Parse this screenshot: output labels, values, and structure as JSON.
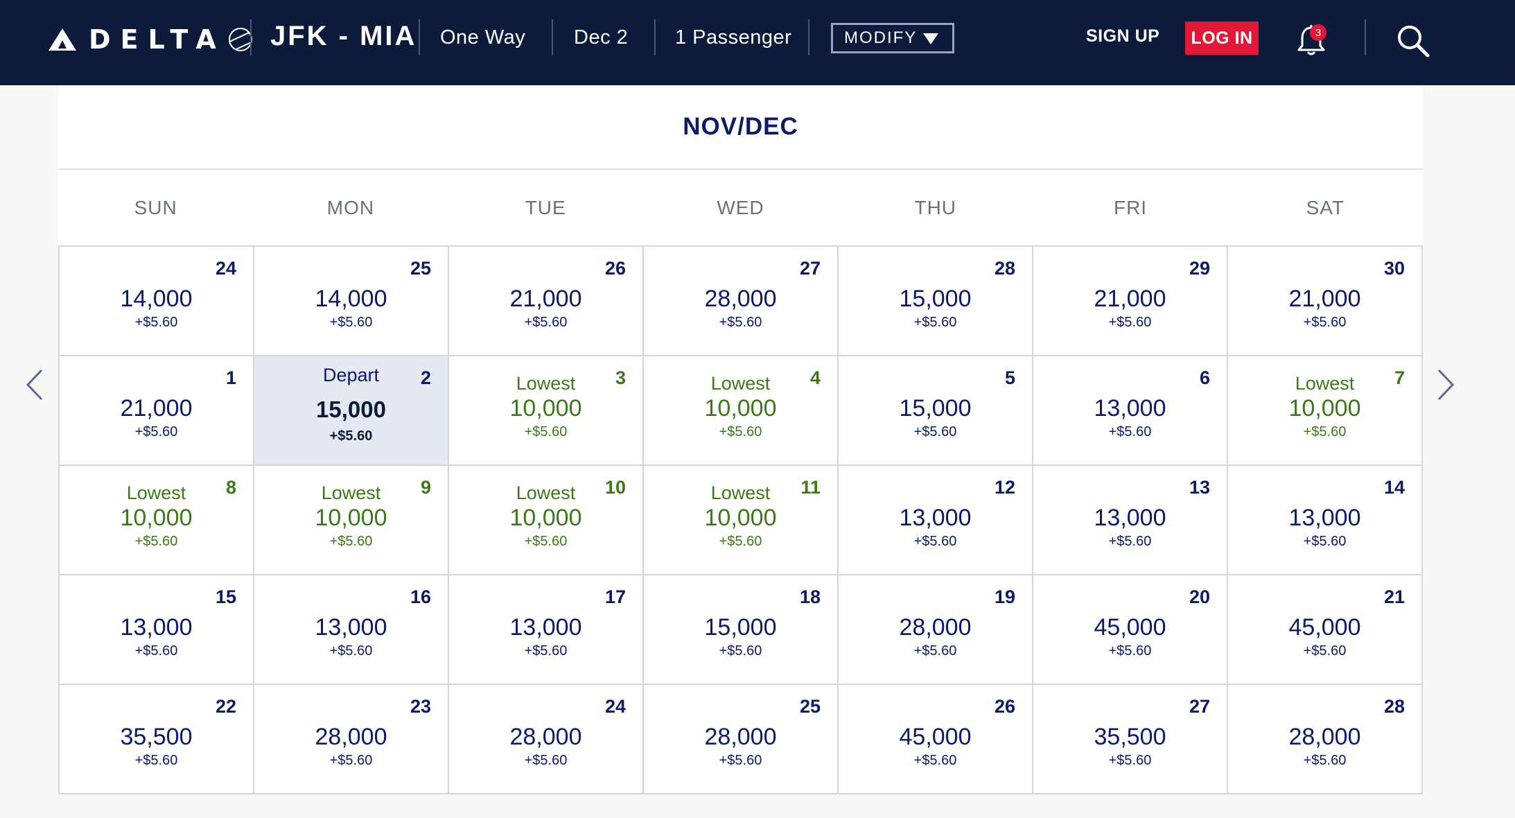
{
  "header": {
    "brand": "DELTA",
    "route": "JFK - MIA",
    "trip_type": "One Way",
    "date": "Dec 2",
    "passengers": "1 Passenger",
    "modify_label": "MODIFY",
    "signup_label": "SIGN UP",
    "login_label": "LOG IN",
    "notification_count": "3",
    "colors": {
      "nav_bg": "#0c1a3b",
      "login_bg": "#e31837"
    }
  },
  "calendar": {
    "title": "NOV/DEC",
    "weekdays": [
      "SUN",
      "MON",
      "TUE",
      "WED",
      "THU",
      "FRI",
      "SAT"
    ],
    "colors": {
      "text": "#0c1a6b",
      "lowest": "#3b7a16",
      "selected_bg": "#e4e9f2"
    },
    "cells": [
      {
        "day": "24",
        "miles": "14,000",
        "fee": "+$5.60",
        "label": ""
      },
      {
        "day": "25",
        "miles": "14,000",
        "fee": "+$5.60",
        "label": ""
      },
      {
        "day": "26",
        "miles": "21,000",
        "fee": "+$5.60",
        "label": ""
      },
      {
        "day": "27",
        "miles": "28,000",
        "fee": "+$5.60",
        "label": ""
      },
      {
        "day": "28",
        "miles": "15,000",
        "fee": "+$5.60",
        "label": ""
      },
      {
        "day": "29",
        "miles": "21,000",
        "fee": "+$5.60",
        "label": ""
      },
      {
        "day": "30",
        "miles": "21,000",
        "fee": "+$5.60",
        "label": ""
      },
      {
        "day": "1",
        "miles": "21,000",
        "fee": "+$5.60",
        "label": ""
      },
      {
        "day": "2",
        "miles": "15,000",
        "fee": "+$5.60",
        "label": "Depart",
        "selected": true
      },
      {
        "day": "3",
        "miles": "10,000",
        "fee": "+$5.60",
        "label": "Lowest",
        "lowest": true
      },
      {
        "day": "4",
        "miles": "10,000",
        "fee": "+$5.60",
        "label": "Lowest",
        "lowest": true
      },
      {
        "day": "5",
        "miles": "15,000",
        "fee": "+$5.60",
        "label": ""
      },
      {
        "day": "6",
        "miles": "13,000",
        "fee": "+$5.60",
        "label": ""
      },
      {
        "day": "7",
        "miles": "10,000",
        "fee": "+$5.60",
        "label": "Lowest",
        "lowest": true
      },
      {
        "day": "8",
        "miles": "10,000",
        "fee": "+$5.60",
        "label": "Lowest",
        "lowest": true
      },
      {
        "day": "9",
        "miles": "10,000",
        "fee": "+$5.60",
        "label": "Lowest",
        "lowest": true
      },
      {
        "day": "10",
        "miles": "10,000",
        "fee": "+$5.60",
        "label": "Lowest",
        "lowest": true
      },
      {
        "day": "11",
        "miles": "10,000",
        "fee": "+$5.60",
        "label": "Lowest",
        "lowest": true
      },
      {
        "day": "12",
        "miles": "13,000",
        "fee": "+$5.60",
        "label": ""
      },
      {
        "day": "13",
        "miles": "13,000",
        "fee": "+$5.60",
        "label": ""
      },
      {
        "day": "14",
        "miles": "13,000",
        "fee": "+$5.60",
        "label": ""
      },
      {
        "day": "15",
        "miles": "13,000",
        "fee": "+$5.60",
        "label": ""
      },
      {
        "day": "16",
        "miles": "13,000",
        "fee": "+$5.60",
        "label": ""
      },
      {
        "day": "17",
        "miles": "13,000",
        "fee": "+$5.60",
        "label": ""
      },
      {
        "day": "18",
        "miles": "15,000",
        "fee": "+$5.60",
        "label": ""
      },
      {
        "day": "19",
        "miles": "28,000",
        "fee": "+$5.60",
        "label": ""
      },
      {
        "day": "20",
        "miles": "45,000",
        "fee": "+$5.60",
        "label": ""
      },
      {
        "day": "21",
        "miles": "45,000",
        "fee": "+$5.60",
        "label": ""
      },
      {
        "day": "22",
        "miles": "35,500",
        "fee": "+$5.60",
        "label": ""
      },
      {
        "day": "23",
        "miles": "28,000",
        "fee": "+$5.60",
        "label": ""
      },
      {
        "day": "24",
        "miles": "28,000",
        "fee": "+$5.60",
        "label": ""
      },
      {
        "day": "25",
        "miles": "28,000",
        "fee": "+$5.60",
        "label": ""
      },
      {
        "day": "26",
        "miles": "45,000",
        "fee": "+$5.60",
        "label": ""
      },
      {
        "day": "27",
        "miles": "35,500",
        "fee": "+$5.60",
        "label": ""
      },
      {
        "day": "28",
        "miles": "28,000",
        "fee": "+$5.60",
        "label": ""
      }
    ]
  },
  "icons": {
    "prev": "chevron-left-icon",
    "next": "chevron-right-icon",
    "bell": "bell-icon",
    "search": "search-icon"
  }
}
